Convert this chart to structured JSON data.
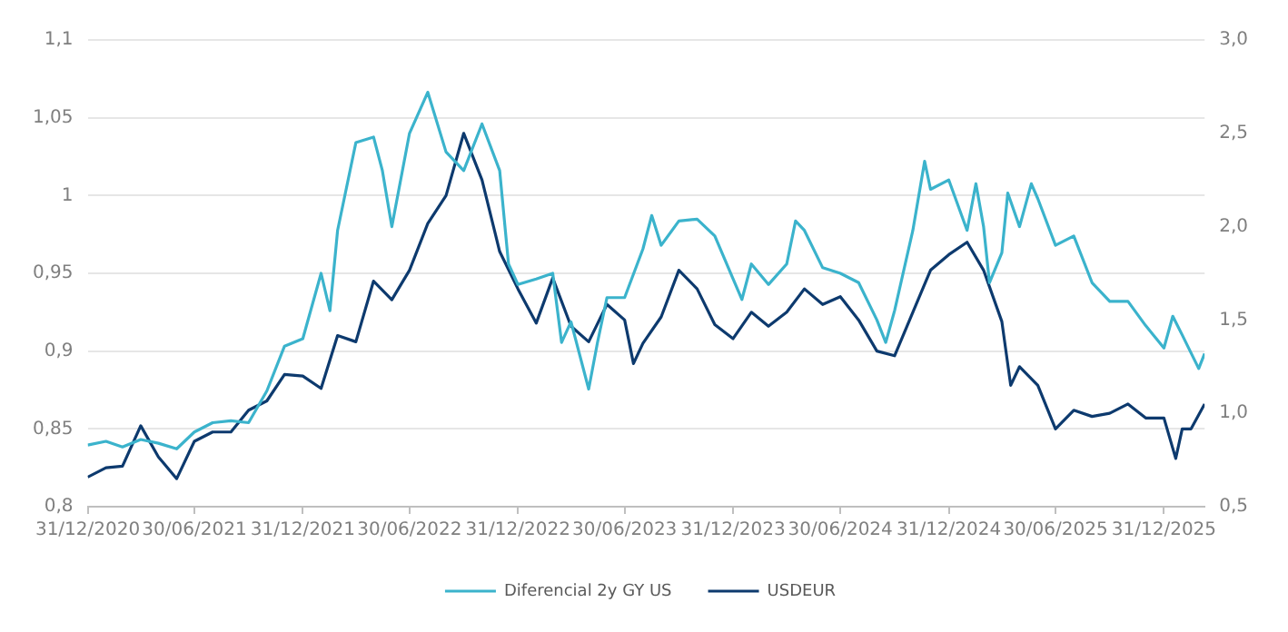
{
  "chart_data": {
    "type": "line",
    "legend": "bottom",
    "grid": "y",
    "xlim": [
      "2020-12-31",
      "2026-03-10"
    ],
    "xticks": [
      {
        "value": "2020-12-31",
        "label": "31/12/2020"
      },
      {
        "value": "2021-06-30",
        "label": "30/06/2021"
      },
      {
        "value": "2021-12-31",
        "label": "31/12/2021"
      },
      {
        "value": "2022-06-30",
        "label": "30/06/2022"
      },
      {
        "value": "2022-12-31",
        "label": "31/12/2022"
      },
      {
        "value": "2023-06-30",
        "label": "30/06/2023"
      },
      {
        "value": "2023-12-31",
        "label": "31/12/2023"
      },
      {
        "value": "2024-06-30",
        "label": "30/06/2024"
      },
      {
        "value": "2024-12-31",
        "label": "31/12/2024"
      },
      {
        "value": "2025-06-30",
        "label": "30/06/2025"
      },
      {
        "value": "2025-12-31",
        "label": "31/12/2025"
      }
    ],
    "ylim": [
      0.8,
      1.1
    ],
    "yticks": [
      {
        "value": 0.8,
        "label": "0,8"
      },
      {
        "value": 0.85,
        "label": "0,85"
      },
      {
        "value": 0.9,
        "label": "0,9"
      },
      {
        "value": 0.95,
        "label": "0,95"
      },
      1,
      {
        "value": 1.05,
        "label": "1,05"
      },
      {
        "value": 1.1,
        "label": "1,1"
      }
    ],
    "y2lim": [
      0.5,
      3.0
    ],
    "y2ticks": [
      {
        "value": 0.5,
        "label": "0,5"
      },
      {
        "value": 1.0,
        "label": "1,0"
      },
      {
        "value": 1.5,
        "label": "1,5"
      },
      {
        "value": 2.0,
        "label": "2,0"
      },
      {
        "value": 2.5,
        "label": "2,5"
      },
      {
        "value": 3.0,
        "label": "3,0"
      }
    ],
    "series": [
      {
        "name": "Diferencial 2y GY US",
        "color": "#3bb3cc",
        "axis": "y2",
        "x": [
          "2020-12-31",
          "2021-01-31",
          "2021-02-28",
          "2021-03-31",
          "2021-04-30",
          "2021-05-31",
          "2021-06-30",
          "2021-07-31",
          "2021-08-31",
          "2021-09-30",
          "2021-10-31",
          "2021-11-30",
          "2021-12-31",
          "2022-01-31",
          "2022-02-15",
          "2022-02-28",
          "2022-03-31",
          "2022-04-30",
          "2022-05-15",
          "2022-05-31",
          "2022-06-30",
          "2022-07-31",
          "2022-08-31",
          "2022-09-30",
          "2022-10-31",
          "2022-11-30",
          "2022-12-15",
          "2022-12-31",
          "2023-01-31",
          "2023-02-28",
          "2023-03-15",
          "2023-03-31",
          "2023-04-30",
          "2023-05-15",
          "2023-05-31",
          "2023-06-30",
          "2023-07-31",
          "2023-08-15",
          "2023-08-31",
          "2023-09-30",
          "2023-10-31",
          "2023-11-30",
          "2023-12-31",
          "2024-01-15",
          "2024-01-31",
          "2024-02-29",
          "2024-03-31",
          "2024-04-15",
          "2024-04-30",
          "2024-05-31",
          "2024-06-30",
          "2024-07-31",
          "2024-08-31",
          "2024-09-15",
          "2024-09-30",
          "2024-10-31",
          "2024-11-20",
          "2024-11-30",
          "2024-12-31",
          "2025-01-31",
          "2025-02-15",
          "2025-02-28",
          "2025-03-10",
          "2025-03-31",
          "2025-04-10",
          "2025-04-30",
          "2025-05-20",
          "2025-05-31",
          "2025-06-30",
          "2025-07-31",
          "2025-08-31",
          "2025-09-30",
          "2025-10-31",
          "2025-11-30",
          "2025-12-31",
          "2026-01-15",
          "2026-01-31",
          "2026-02-28",
          "2026-03-10"
        ],
        "values": [
          0.83,
          0.85,
          0.82,
          0.86,
          0.84,
          0.81,
          0.9,
          0.95,
          0.96,
          0.95,
          1.12,
          1.36,
          1.4,
          1.75,
          1.55,
          1.98,
          2.45,
          2.48,
          2.3,
          2.0,
          2.5,
          2.72,
          2.4,
          2.3,
          2.55,
          2.3,
          1.8,
          1.69,
          1.72,
          1.75,
          1.38,
          1.49,
          1.13,
          1.38,
          1.62,
          1.62,
          1.88,
          2.06,
          1.9,
          2.03,
          2.04,
          1.95,
          1.72,
          1.61,
          1.8,
          1.69,
          1.8,
          2.03,
          1.98,
          1.78,
          1.75,
          1.7,
          1.5,
          1.38,
          1.55,
          1.98,
          2.35,
          2.2,
          2.25,
          1.98,
          2.23,
          2.0,
          1.7,
          1.86,
          2.18,
          2.0,
          2.23,
          2.15,
          1.9,
          1.95,
          1.7,
          1.6,
          1.6,
          1.47,
          1.35,
          1.52,
          1.42,
          1.24,
          1.32
        ]
      },
      {
        "name": "USDEUR",
        "color": "#0d3a6e",
        "x": [
          "2020-12-31",
          "2021-01-31",
          "2021-02-28",
          "2021-03-31",
          "2021-04-30",
          "2021-05-31",
          "2021-06-30",
          "2021-07-31",
          "2021-08-31",
          "2021-09-30",
          "2021-10-31",
          "2021-11-30",
          "2021-12-31",
          "2022-01-31",
          "2022-02-28",
          "2022-03-31",
          "2022-04-30",
          "2022-05-31",
          "2022-06-30",
          "2022-07-31",
          "2022-08-31",
          "2022-09-30",
          "2022-10-31",
          "2022-11-30",
          "2022-12-31",
          "2023-01-31",
          "2023-02-28",
          "2023-03-31",
          "2023-04-30",
          "2023-05-31",
          "2023-06-30",
          "2023-07-15",
          "2023-07-31",
          "2023-08-31",
          "2023-09-30",
          "2023-10-31",
          "2023-11-30",
          "2023-12-31",
          "2024-01-31",
          "2024-02-29",
          "2024-03-31",
          "2024-04-30",
          "2024-05-31",
          "2024-06-30",
          "2024-07-31",
          "2024-08-31",
          "2024-09-30",
          "2024-10-31",
          "2024-11-30",
          "2024-12-31",
          "2025-01-31",
          "2025-02-28",
          "2025-03-31",
          "2025-04-15",
          "2025-04-30",
          "2025-05-31",
          "2025-06-30",
          "2025-07-31",
          "2025-08-31",
          "2025-09-30",
          "2025-10-31",
          "2025-11-30",
          "2025-12-31",
          "2026-01-20",
          "2026-01-31",
          "2026-02-15",
          "2026-03-10"
        ],
        "values": [
          0.819,
          0.825,
          0.826,
          0.852,
          0.832,
          0.818,
          0.842,
          0.848,
          0.848,
          0.862,
          0.868,
          0.885,
          0.884,
          0.876,
          0.91,
          0.906,
          0.945,
          0.933,
          0.952,
          0.982,
          1.0,
          1.04,
          1.01,
          0.964,
          0.94,
          0.918,
          0.947,
          0.916,
          0.906,
          0.93,
          0.92,
          0.892,
          0.905,
          0.922,
          0.952,
          0.94,
          0.917,
          0.908,
          0.925,
          0.916,
          0.925,
          0.94,
          0.93,
          0.935,
          0.92,
          0.9,
          0.897,
          0.925,
          0.952,
          0.962,
          0.97,
          0.952,
          0.919,
          0.878,
          0.89,
          0.878,
          0.85,
          0.862,
          0.858,
          0.86,
          0.866,
          0.857,
          0.857,
          0.831,
          0.85,
          0.85,
          0.866
        ]
      }
    ]
  }
}
